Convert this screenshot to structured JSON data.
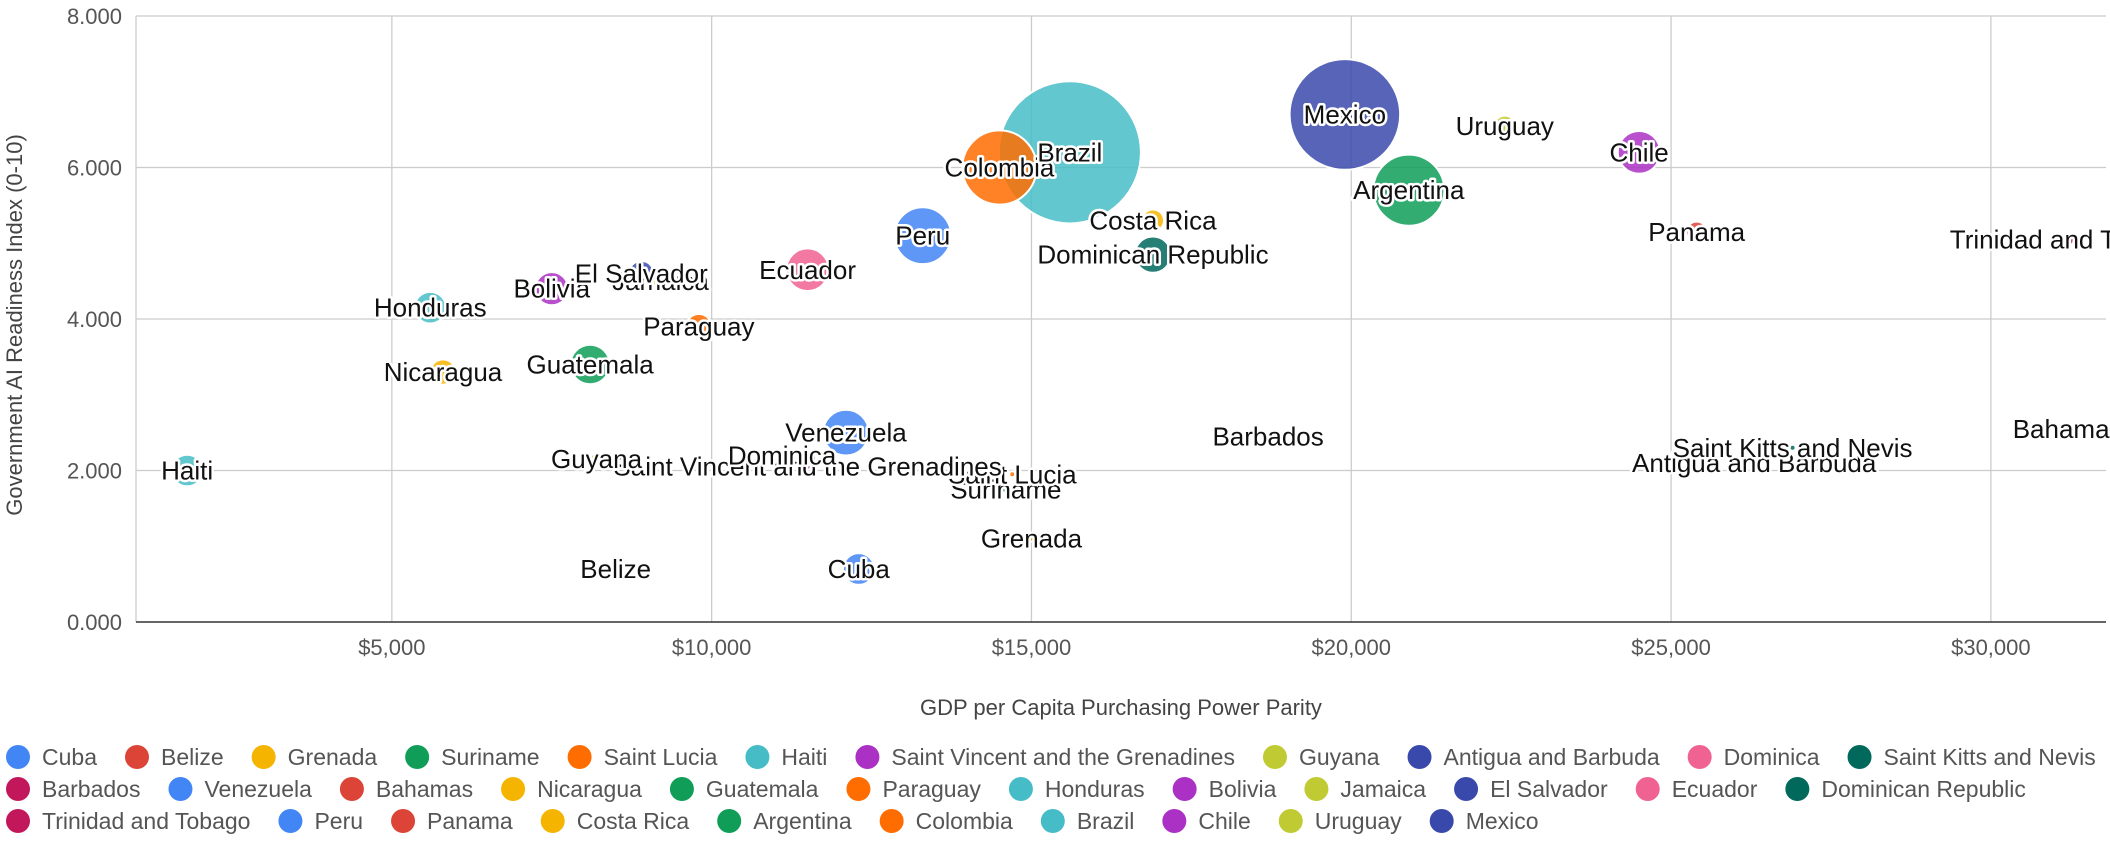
{
  "chart_data": {
    "type": "scatter",
    "subtype": "bubble",
    "title": "",
    "xlabel": "GDP per Capita Purchasing Power Parity",
    "ylabel": "Government AI Readiness Index (0-10)",
    "xlim": [
      1000,
      31800
    ],
    "ylim": [
      0,
      8
    ],
    "x_ticks": [
      {
        "value": 5000,
        "label": "$5,000"
      },
      {
        "value": 10000,
        "label": "$10,000"
      },
      {
        "value": 15000,
        "label": "$15,000"
      },
      {
        "value": 20000,
        "label": "$20,000"
      },
      {
        "value": 25000,
        "label": "$25,000"
      },
      {
        "value": 30000,
        "label": "$30,000"
      }
    ],
    "y_ticks": [
      {
        "value": 0,
        "label": "0.000"
      },
      {
        "value": 2,
        "label": "2.000"
      },
      {
        "value": 4,
        "label": "4.000"
      },
      {
        "value": 6,
        "label": "6.000"
      },
      {
        "value": 8,
        "label": "8.000"
      }
    ],
    "grid": true,
    "legend_position": "bottom",
    "size_unit": "relative bubble radius (0-10)",
    "series": [
      {
        "name": "Cuba",
        "color": "#4285f4",
        "x": 12300,
        "y": 0.7,
        "size": 2.0
      },
      {
        "name": "Belize",
        "color": "#db4437",
        "x": 8500,
        "y": 0.7,
        "size": 0.2
      },
      {
        "name": "Grenada",
        "color": "#f4b400",
        "x": 15000,
        "y": 1.1,
        "size": 0.3
      },
      {
        "name": "Suriname",
        "color": "#0f9d58",
        "x": 14600,
        "y": 1.75,
        "size": 0.5
      },
      {
        "name": "Saint Lucia",
        "color": "#ff6d00",
        "x": 14700,
        "y": 1.95,
        "size": 0.3
      },
      {
        "name": "Haiti",
        "color": "#46bdc6",
        "x": 1800,
        "y": 2.0,
        "size": 2.0
      },
      {
        "name": "Saint Vincent and the Grenadines",
        "color": "#ab30c4",
        "x": 11500,
        "y": 2.05,
        "size": 0.3
      },
      {
        "name": "Guyana",
        "color": "#c0ca33",
        "x": 8200,
        "y": 2.15,
        "size": 0.8
      },
      {
        "name": "Antigua and Barbuda",
        "color": "#3949ab",
        "x": 26300,
        "y": 2.1,
        "size": 0.3
      },
      {
        "name": "Dominica",
        "color": "#f06292",
        "x": 11100,
        "y": 2.2,
        "size": 0.3
      },
      {
        "name": "Saint Kitts and Nevis",
        "color": "#00695c",
        "x": 26900,
        "y": 2.3,
        "size": 0.3
      },
      {
        "name": "Barbados",
        "color": "#c2185b",
        "x": 18700,
        "y": 2.45,
        "size": 0.6
      },
      {
        "name": "Venezuela",
        "color": "#4285f4",
        "x": 12100,
        "y": 2.5,
        "size": 2.9
      },
      {
        "name": "Bahamas",
        "color": "#db4437",
        "x": 31200,
        "y": 2.55,
        "size": 0.5
      },
      {
        "name": "Nicaragua",
        "color": "#f4b400",
        "x": 5800,
        "y": 3.3,
        "size": 1.6
      },
      {
        "name": "Guatemala",
        "color": "#0f9d58",
        "x": 8100,
        "y": 3.4,
        "size": 2.5
      },
      {
        "name": "Paraguay",
        "color": "#ff6d00",
        "x": 9800,
        "y": 3.9,
        "size": 1.6
      },
      {
        "name": "Honduras",
        "color": "#46bdc6",
        "x": 5600,
        "y": 4.15,
        "size": 2.0
      },
      {
        "name": "Bolivia",
        "color": "#ab30c4",
        "x": 7500,
        "y": 4.4,
        "size": 2.1
      },
      {
        "name": "Jamaica",
        "color": "#c0ca33",
        "x": 9200,
        "y": 4.5,
        "size": 1.0
      },
      {
        "name": "El Salvador",
        "color": "#3949ab",
        "x": 8900,
        "y": 4.6,
        "size": 1.6
      },
      {
        "name": "Ecuador",
        "color": "#f06292",
        "x": 11500,
        "y": 4.65,
        "size": 2.7
      },
      {
        "name": "Dominican Republic",
        "color": "#00695c",
        "x": 16900,
        "y": 4.85,
        "size": 2.3
      },
      {
        "name": "Trinidad and Tobago",
        "color": "#c2185b",
        "x": 31200,
        "y": 5.05,
        "size": 0.8
      },
      {
        "name": "Peru",
        "color": "#4285f4",
        "x": 13300,
        "y": 5.1,
        "size": 3.6
      },
      {
        "name": "Panama",
        "color": "#db4437",
        "x": 25400,
        "y": 5.15,
        "size": 1.3
      },
      {
        "name": "Costa Rica",
        "color": "#f4b400",
        "x": 16900,
        "y": 5.3,
        "size": 1.4
      },
      {
        "name": "Argentina",
        "color": "#0f9d58",
        "x": 20900,
        "y": 5.7,
        "size": 4.5
      },
      {
        "name": "Colombia",
        "color": "#ff6d00",
        "x": 14500,
        "y": 6.0,
        "size": 4.7
      },
      {
        "name": "Brazil",
        "color": "#46bdc6",
        "x": 15600,
        "y": 6.2,
        "size": 9.0
      },
      {
        "name": "Chile",
        "color": "#ab30c4",
        "x": 24500,
        "y": 6.2,
        "size": 2.7
      },
      {
        "name": "Uruguay",
        "color": "#c0ca33",
        "x": 22400,
        "y": 6.55,
        "size": 1.3
      },
      {
        "name": "Mexico",
        "color": "#3949ab",
        "x": 19900,
        "y": 6.7,
        "size": 7.0
      }
    ]
  }
}
